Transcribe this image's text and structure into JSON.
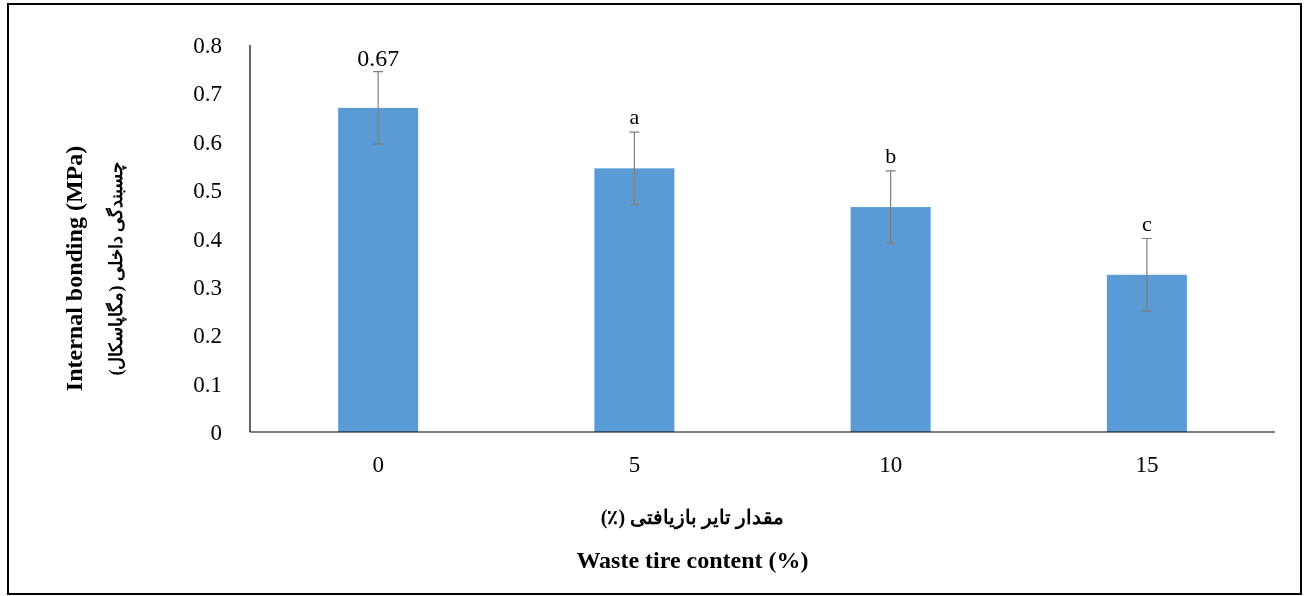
{
  "chart_data": {
    "type": "bar",
    "categories": [
      "0",
      "5",
      "10",
      "15"
    ],
    "values": [
      0.67,
      0.545,
      0.465,
      0.325
    ],
    "errors": [
      0.075,
      0.075,
      0.075,
      0.075
    ],
    "value_labels": [
      "0.67",
      null,
      null,
      null
    ],
    "color": "#5b9bd5",
    "ylabel": "Internal bonding (MPa)\nچسبندگی داخلی (مگاپاسکال)",
    "xlabel": "مقدار تایر بازیافتی (٪)\nWaste tire content (%)",
    "annotations": [
      {
        "text": "a",
        "x": "5",
        "y": 0.62
      },
      {
        "text": "b",
        "x": "10",
        "y": 0.54
      },
      {
        "text": "c",
        "x": "15",
        "y": 0.4
      }
    ],
    "ylim": [
      0,
      0.8
    ],
    "yticks": [
      0,
      0.1,
      0.2,
      0.3,
      0.4,
      0.5,
      0.6,
      0.7,
      0.8
    ],
    "grid": false
  }
}
